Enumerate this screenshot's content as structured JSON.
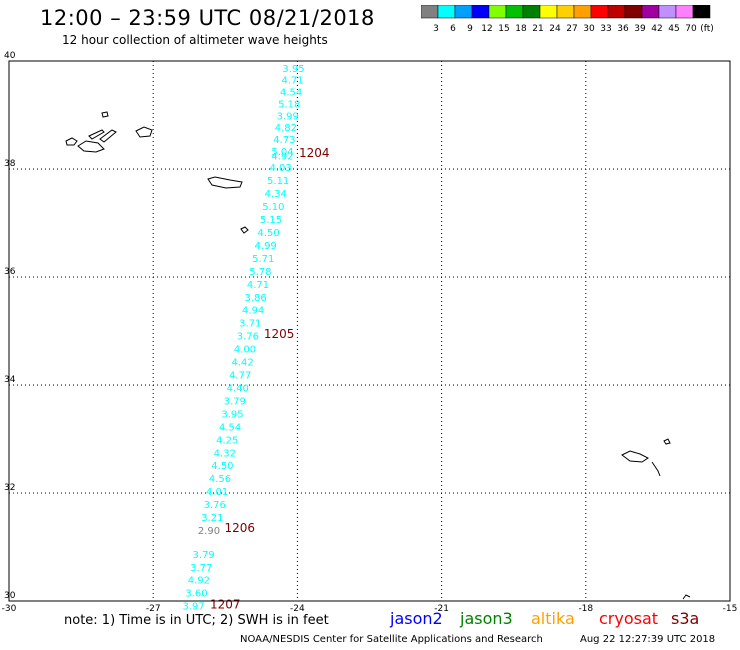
{
  "header": {
    "title": "12:00 – 23:59 UTC 08/21/2018",
    "subtitle": "12 hour collection of altimeter wave heights"
  },
  "colorbar": {
    "bins": [
      {
        "color": "#808080",
        "label": "3"
      },
      {
        "color": "#00ffff",
        "label": "6"
      },
      {
        "color": "#00a0ff",
        "label": "9"
      },
      {
        "color": "#0000ff",
        "label": "12"
      },
      {
        "color": "#80ff00",
        "label": "15"
      },
      {
        "color": "#00c000",
        "label": "18"
      },
      {
        "color": "#008000",
        "label": "21"
      },
      {
        "color": "#ffff00",
        "label": "24"
      },
      {
        "color": "#ffd000",
        "label": "27"
      },
      {
        "color": "#ffa000",
        "label": "30"
      },
      {
        "color": "#ff0000",
        "label": "33"
      },
      {
        "color": "#c00000",
        "label": "36"
      },
      {
        "color": "#800000",
        "label": "39"
      },
      {
        "color": "#a000a0",
        "label": "42"
      },
      {
        "color": "#c090ff",
        "label": "45"
      },
      {
        "color": "#ff80ff",
        "label": "70"
      },
      {
        "color": "#000000",
        "label": ""
      }
    ],
    "unit_label": "(ft)"
  },
  "chart_data": {
    "type": "scatter",
    "title": "12:00 – 23:59 UTC 08/21/2018",
    "subtitle": "12 hour collection of altimeter wave heights",
    "xlim": [
      -30,
      -15
    ],
    "ylim": [
      30,
      40
    ],
    "x_ticks": [
      "-30",
      "-27",
      "-24",
      "-21",
      "-18",
      "-15"
    ],
    "y_ticks": [
      "30",
      "32",
      "34",
      "36",
      "38",
      "40"
    ],
    "grid": true,
    "units": "ft",
    "series": [
      {
        "name": "jason2",
        "points": [
          {
            "lon": -24.08,
            "lat": 39.8,
            "v": "3.95",
            "c": "#00ffff"
          },
          {
            "lon": -24.1,
            "lat": 39.58,
            "v": "4.71",
            "c": "#00ffff"
          },
          {
            "lon": -24.13,
            "lat": 39.36,
            "v": "4.54",
            "c": "#00ffff"
          },
          {
            "lon": -24.17,
            "lat": 39.14,
            "v": "5.18",
            "c": "#00ffff"
          },
          {
            "lon": -24.2,
            "lat": 38.92,
            "v": "3.99",
            "c": "#00ffff"
          },
          {
            "lon": -24.24,
            "lat": 38.7,
            "v": "4.82",
            "c": "#00ffff"
          },
          {
            "lon": -24.27,
            "lat": 38.48,
            "v": "4.73",
            "c": "#00ffff"
          },
          {
            "lon": -24.31,
            "lat": 38.26,
            "v": "5.04",
            "c": "#00ffff"
          },
          {
            "lon": -24.31,
            "lat": 38.18,
            "v": "4.92",
            "c": "#00ffff"
          },
          {
            "lon": -24.35,
            "lat": 37.96,
            "v": "4.03",
            "c": "#00ffff"
          },
          {
            "lon": -24.4,
            "lat": 37.72,
            "v": "5.11",
            "c": "#00ffff"
          },
          {
            "lon": -24.45,
            "lat": 37.48,
            "v": "4.34",
            "c": "#00ffff"
          },
          {
            "lon": -24.5,
            "lat": 37.24,
            "v": "5.10",
            "c": "#00ffff"
          },
          {
            "lon": -24.55,
            "lat": 37.0,
            "v": "5.15",
            "c": "#00ffff"
          },
          {
            "lon": -24.6,
            "lat": 36.76,
            "v": "4.50",
            "c": "#00ffff"
          },
          {
            "lon": -24.66,
            "lat": 36.52,
            "v": "4.99",
            "c": "#00ffff"
          },
          {
            "lon": -24.71,
            "lat": 36.28,
            "v": "5.71",
            "c": "#00ffff"
          },
          {
            "lon": -24.77,
            "lat": 36.04,
            "v": "5.78",
            "c": "#00ffff"
          },
          {
            "lon": -24.82,
            "lat": 35.8,
            "v": "4.71",
            "c": "#00ffff"
          },
          {
            "lon": -24.87,
            "lat": 35.56,
            "v": "3.86",
            "c": "#00ffff"
          },
          {
            "lon": -24.92,
            "lat": 35.32,
            "v": "4.94",
            "c": "#00ffff"
          },
          {
            "lon": -24.98,
            "lat": 35.08,
            "v": "3.71",
            "c": "#00ffff"
          },
          {
            "lon": -25.03,
            "lat": 34.84,
            "v": "3.76",
            "c": "#00ffff"
          },
          {
            "lon": -25.09,
            "lat": 34.6,
            "v": "4.00",
            "c": "#00ffff"
          },
          {
            "lon": -25.14,
            "lat": 34.36,
            "v": "4.42",
            "c": "#00ffff"
          },
          {
            "lon": -25.19,
            "lat": 34.12,
            "v": "4.77",
            "c": "#00ffff"
          },
          {
            "lon": -25.24,
            "lat": 33.88,
            "v": "4.40",
            "c": "#00ffff"
          },
          {
            "lon": -25.3,
            "lat": 33.64,
            "v": "3.79",
            "c": "#00ffff"
          },
          {
            "lon": -25.35,
            "lat": 33.4,
            "v": "3.95",
            "c": "#00ffff"
          },
          {
            "lon": -25.4,
            "lat": 33.16,
            "v": "4.54",
            "c": "#00ffff"
          },
          {
            "lon": -25.46,
            "lat": 32.92,
            "v": "4.25",
            "c": "#00ffff"
          },
          {
            "lon": -25.51,
            "lat": 32.68,
            "v": "4.32",
            "c": "#00ffff"
          },
          {
            "lon": -25.56,
            "lat": 32.44,
            "v": "4.50",
            "c": "#00ffff"
          },
          {
            "lon": -25.61,
            "lat": 32.2,
            "v": "4.56",
            "c": "#00ffff"
          },
          {
            "lon": -25.67,
            "lat": 31.96,
            "v": "4.01",
            "c": "#00ffff"
          },
          {
            "lon": -25.72,
            "lat": 31.72,
            "v": "3.76",
            "c": "#00ffff"
          },
          {
            "lon": -25.77,
            "lat": 31.48,
            "v": "3.21",
            "c": "#00ffff"
          },
          {
            "lon": -25.84,
            "lat": 31.24,
            "v": "2.90",
            "c": "#808080"
          },
          {
            "lon": -25.95,
            "lat": 30.8,
            "v": "3.79",
            "c": "#00ffff"
          },
          {
            "lon": -26.0,
            "lat": 30.56,
            "v": "3.77",
            "c": "#00ffff"
          },
          {
            "lon": -26.05,
            "lat": 30.32,
            "v": "4.92",
            "c": "#00ffff"
          },
          {
            "lon": -26.1,
            "lat": 30.08,
            "v": "3.60",
            "c": "#00ffff"
          },
          {
            "lon": -26.16,
            "lat": 29.84,
            "v": "3.97",
            "c": "#00ffff"
          }
        ]
      }
    ],
    "time_labels": [
      {
        "lon": -23.65,
        "lat": 38.22,
        "text": "1204"
      },
      {
        "lon": -24.38,
        "lat": 34.87,
        "text": "1205"
      },
      {
        "lon": -25.2,
        "lat": 31.28,
        "text": "1206"
      },
      {
        "lon": -25.5,
        "lat": 29.86,
        "text": "1207"
      }
    ],
    "time_label_color": "#800000"
  },
  "footer": {
    "note": "note: 1) Time is in UTC; 2) SWH is in feet",
    "satellites": [
      {
        "name": "jason2",
        "color": "#0000ff"
      },
      {
        "name": "jason3",
        "color": "#008000"
      },
      {
        "name": "altika",
        "color": "#ffa000"
      },
      {
        "name": "cryosat",
        "color": "#ff0000"
      },
      {
        "name": "s3a",
        "color": "#800000"
      }
    ],
    "credit": "NOAA/NESDIS Center for Satellite Applications and Research",
    "timestamp": "Aug 22 12:27:39 UTC 2018"
  }
}
